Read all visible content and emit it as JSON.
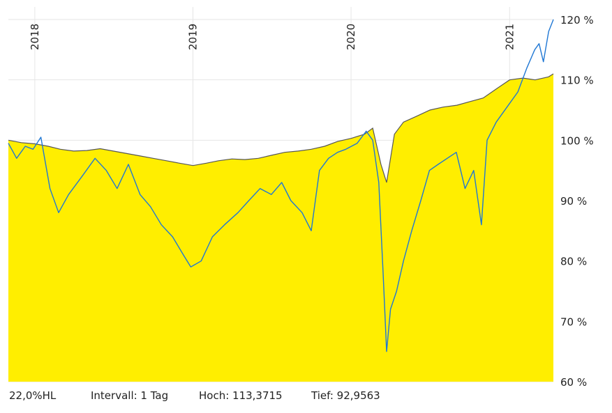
{
  "chart_data": {
    "type": "area",
    "x_labels": [
      "2018",
      "2019",
      "2020",
      "2021"
    ],
    "x_label_dates": [
      "2018-01-01",
      "2019-01-01",
      "2020-01-01",
      "2021-01-01"
    ],
    "x_range": [
      "2017-11-01",
      "2021-04-12"
    ],
    "y_ticks": [
      "60 %",
      "70 %",
      "80 %",
      "90 %",
      "100 %",
      "110 %",
      "120 %"
    ],
    "y_values": [
      60,
      70,
      80,
      90,
      100,
      110,
      120
    ],
    "ylim": [
      60,
      120
    ],
    "grid": true,
    "colors": {
      "area_fill": "#ffee00",
      "area_line": "#555555",
      "series_line": "#1f77d4",
      "grid": "#e6e6e6"
    },
    "series": [
      {
        "type": "area",
        "x": [
          "2017-11-01",
          "2017-12-01",
          "2018-01-01",
          "2018-02-01",
          "2018-03-01",
          "2018-04-01",
          "2018-05-01",
          "2018-06-01",
          "2018-07-01",
          "2018-08-01",
          "2018-09-01",
          "2018-10-01",
          "2018-11-01",
          "2018-12-01",
          "2019-01-01",
          "2019-02-01",
          "2019-03-01",
          "2019-04-01",
          "2019-05-01",
          "2019-06-01",
          "2019-07-01",
          "2019-08-01",
          "2019-09-01",
          "2019-10-01",
          "2019-11-01",
          "2019-12-01",
          "2020-01-01",
          "2020-02-01",
          "2020-02-20",
          "2020-03-10",
          "2020-03-23",
          "2020-04-10",
          "2020-05-01",
          "2020-06-01",
          "2020-07-01",
          "2020-08-01",
          "2020-09-01",
          "2020-10-01",
          "2020-11-01",
          "2020-12-01",
          "2021-01-01",
          "2021-02-01",
          "2021-03-01",
          "2021-04-01",
          "2021-04-12"
        ],
        "values": [
          100,
          99.6,
          99.4,
          99,
          98.5,
          98.2,
          98.3,
          98.6,
          98.2,
          97.8,
          97.4,
          97,
          96.6,
          96.2,
          95.8,
          96.2,
          96.6,
          96.9,
          96.8,
          97,
          97.5,
          98,
          98.2,
          98.5,
          99,
          99.8,
          100.3,
          101,
          102,
          96,
          93,
          101,
          103,
          104,
          105,
          105.5,
          105.8,
          106.4,
          107,
          108.5,
          110,
          110.3,
          110,
          110.5,
          111
        ]
      },
      {
        "type": "line",
        "x": [
          "2017-11-01",
          "2017-11-20",
          "2017-12-10",
          "2017-12-28",
          "2018-01-15",
          "2018-02-05",
          "2018-02-25",
          "2018-03-20",
          "2018-04-20",
          "2018-05-20",
          "2018-06-15",
          "2018-07-10",
          "2018-08-05",
          "2018-09-01",
          "2018-09-25",
          "2018-10-20",
          "2018-11-15",
          "2018-12-10",
          "2018-12-27",
          "2019-01-20",
          "2019-02-15",
          "2019-03-15",
          "2019-04-15",
          "2019-05-10",
          "2019-06-05",
          "2019-07-01",
          "2019-07-25",
          "2019-08-15",
          "2019-09-10",
          "2019-10-01",
          "2019-10-20",
          "2019-11-10",
          "2019-12-01",
          "2019-12-20",
          "2020-01-15",
          "2020-02-05",
          "2020-02-20",
          "2020-03-05",
          "2020-03-15",
          "2020-03-23",
          "2020-04-01",
          "2020-04-15",
          "2020-05-01",
          "2020-05-20",
          "2020-06-10",
          "2020-06-30",
          "2020-07-20",
          "2020-08-10",
          "2020-08-31",
          "2020-09-20",
          "2020-10-10",
          "2020-10-28",
          "2020-11-10",
          "2020-12-01",
          "2020-12-31",
          "2021-01-20",
          "2021-02-10",
          "2021-02-28",
          "2021-03-10",
          "2021-03-20",
          "2021-04-01",
          "2021-04-12"
        ],
        "values": [
          99.5,
          97,
          99,
          98.5,
          100.5,
          92,
          88,
          91,
          94,
          97,
          95,
          92,
          96,
          91,
          89,
          86,
          84,
          81,
          79,
          80,
          84,
          86,
          88,
          90,
          92,
          91,
          93,
          90,
          88,
          85,
          95,
          97,
          98,
          98.5,
          99.5,
          101.5,
          100,
          93,
          78,
          65,
          72,
          75,
          80,
          85,
          90,
          95,
          96,
          97,
          98,
          92,
          95,
          86,
          100,
          103,
          106,
          108,
          112,
          115,
          116,
          113,
          118,
          120
        ]
      }
    ]
  },
  "footer": {
    "label": "22,0%HL",
    "interval": "Intervall: 1 Tag",
    "high": "Hoch: 113,3715",
    "low": "Tief: 92,9563"
  }
}
